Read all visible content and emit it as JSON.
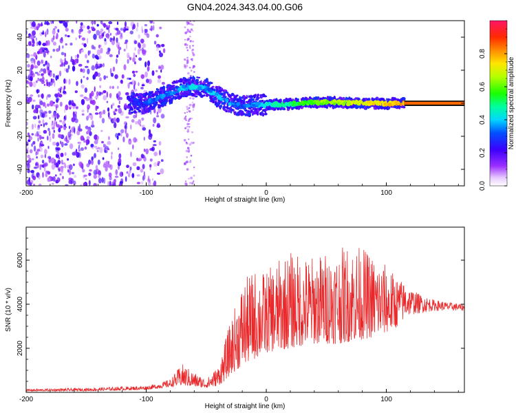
{
  "title": "GN04.2024.343.04.00.G06",
  "chart_data": [
    {
      "type": "heatmap",
      "title": "GN04.2024.343.04.00.G06",
      "xlabel": "Height of straight line (km)",
      "ylabel": "Frequency (Hz)",
      "xlim": [
        -200,
        165
      ],
      "ylim": [
        -50,
        50
      ],
      "xticks": [
        -200,
        -100,
        0,
        100
      ],
      "yticks": [
        -40,
        -20,
        0,
        20,
        40
      ],
      "colorbar": {
        "label": "Normalized spectral amplitude",
        "range": [
          0,
          1
        ],
        "ticks": [
          0.0,
          0.2,
          0.4,
          0.6,
          0.8
        ],
        "tick_labels": [
          "0.0",
          "0.2",
          "0.4",
          "0.6",
          "0.8"
        ]
      },
      "dominant_frequency_trace": {
        "x": [
          -110,
          -100,
          -90,
          -80,
          -70,
          -60,
          -50,
          -40,
          -30,
          -20,
          -10,
          0,
          20,
          40,
          60,
          80,
          100,
          120,
          165
        ],
        "y": [
          0,
          0,
          3,
          6,
          9,
          10,
          9,
          4,
          0,
          -2,
          -1,
          -1,
          -0.5,
          0.5,
          0.5,
          0,
          0,
          0,
          0
        ],
        "amplitude": [
          0.25,
          0.3,
          0.35,
          0.35,
          0.4,
          0.4,
          0.35,
          0.4,
          0.35,
          0.3,
          0.35,
          0.45,
          0.5,
          0.6,
          0.65,
          0.7,
          0.75,
          0.8,
          0.85
        ]
      }
    },
    {
      "type": "line",
      "xlabel": "Height of straight line (km)",
      "ylabel": "SNR (10 * v/v)",
      "xlim": [
        -200,
        165
      ],
      "ylim": [
        0,
        7500
      ],
      "xticks": [
        -200,
        -100,
        0,
        100
      ],
      "yticks": [
        2000,
        4000,
        6000
      ],
      "color": "#e8282a",
      "envelope": {
        "x": [
          -200,
          -150,
          -100,
          -90,
          -80,
          -70,
          -60,
          -50,
          -40,
          -35,
          -30,
          -20,
          -10,
          0,
          10,
          20,
          30,
          40,
          50,
          60,
          70,
          80,
          90,
          100,
          110,
          120,
          130,
          140,
          150,
          165
        ],
        "low": [
          50,
          60,
          120,
          180,
          250,
          300,
          250,
          200,
          300,
          500,
          800,
          1200,
          1500,
          1800,
          1900,
          2000,
          2100,
          2200,
          2200,
          2200,
          2300,
          2400,
          2500,
          2700,
          3000,
          3500,
          3600,
          3700,
          3700,
          3700
        ],
        "high": [
          150,
          200,
          300,
          400,
          600,
          1300,
          900,
          600,
          1200,
          2200,
          3200,
          5000,
          5600,
          5500,
          6000,
          6400,
          6200,
          6200,
          6400,
          6500,
          6800,
          6600,
          6200,
          5800,
          5200,
          4700,
          4400,
          4200,
          4100,
          4000
        ]
      }
    }
  ]
}
